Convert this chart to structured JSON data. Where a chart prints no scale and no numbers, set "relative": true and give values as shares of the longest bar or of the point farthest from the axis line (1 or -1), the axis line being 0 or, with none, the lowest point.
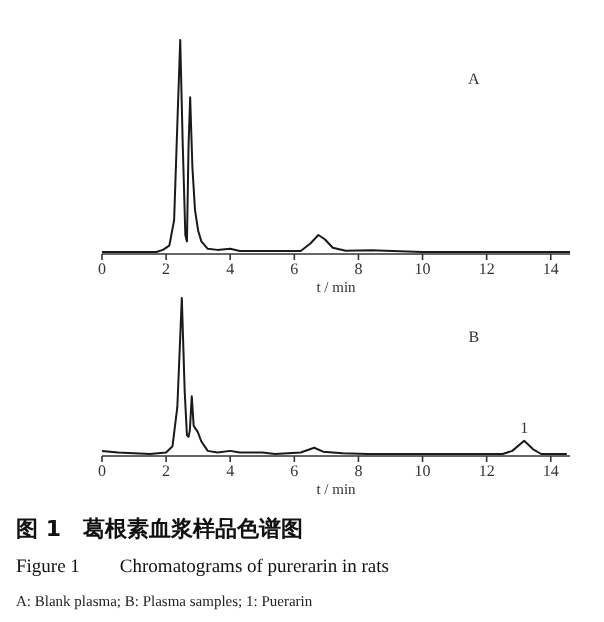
{
  "chart_data": [
    {
      "type": "line",
      "relative": true,
      "xlabel": "t / min",
      "xlim": [
        0,
        14.6
      ],
      "xticks": [
        0,
        2,
        4,
        6,
        8,
        10,
        12,
        14
      ],
      "annotations": [
        "A"
      ],
      "series": [
        {
          "color": "#1a1a1a",
          "x": [
            0,
            1.7,
            1.9,
            2.1,
            2.25,
            2.35,
            2.44,
            2.52,
            2.6,
            2.65,
            2.7,
            2.75,
            2.82,
            2.9,
            3.0,
            3.1,
            3.3,
            3.6,
            4.0,
            4.3,
            5.0,
            6.2,
            6.5,
            6.75,
            6.95,
            7.2,
            7.6,
            8.4,
            9.3,
            10,
            13,
            14.6
          ],
          "values": [
            0,
            0,
            0.01,
            0.03,
            0.15,
            0.6,
            1,
            0.5,
            0.08,
            0.05,
            0.5,
            0.73,
            0.4,
            0.2,
            0.1,
            0.05,
            0.015,
            0.01,
            0.015,
            0.005,
            0.005,
            0.005,
            0.04,
            0.08,
            0.06,
            0.02,
            0.006,
            0.008,
            0.004,
            0,
            0,
            0
          ]
        }
      ]
    },
    {
      "type": "line",
      "relative": true,
      "xlabel": "t / min",
      "xlim": [
        0,
        14.6
      ],
      "xticks": [
        0,
        2,
        4,
        6,
        8,
        10,
        12,
        14
      ],
      "annotations": [
        "B",
        {
          "text": "1",
          "x": 13.17,
          "y": 0.085
        }
      ],
      "series": [
        {
          "color": "#1a1a1a",
          "x": [
            0,
            0.5,
            1.5,
            2.0,
            2.2,
            2.35,
            2.49,
            2.58,
            2.65,
            2.7,
            2.74,
            2.8,
            2.86,
            2.99,
            3.1,
            3.3,
            3.6,
            4.0,
            4.3,
            5.0,
            5.4,
            6.2,
            6.62,
            6.9,
            7.5,
            8.3,
            10,
            12.5,
            12.8,
            13.17,
            13.45,
            13.7,
            14.5
          ],
          "values": [
            0.02,
            0.01,
            0,
            0.01,
            0.05,
            0.3,
            1,
            0.4,
            0.12,
            0.11,
            0.15,
            0.37,
            0.18,
            0.14,
            0.08,
            0.02,
            0.01,
            0.02,
            0.01,
            0.01,
            0,
            0.01,
            0.04,
            0.015,
            0.005,
            0,
            0,
            0,
            0.02,
            0.085,
            0.03,
            0,
            0
          ]
        }
      ]
    },
    {
      "type": "other",
      "title": "图 1　葛根素血浆样品色谱图",
      "subtitle": "Figure 1　　Chromatograms of purerarin in rats",
      "annotations": [
        "A: Blank plasma; B: Plasma samples; 1: Puerarin"
      ]
    }
  ]
}
